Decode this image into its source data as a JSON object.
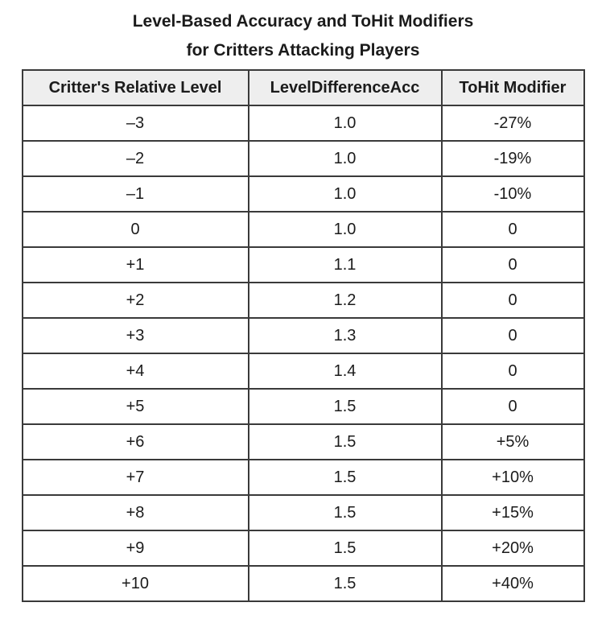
{
  "title": {
    "line1": "Level-Based Accuracy and ToHit Modifiers",
    "line2": "for Critters Attacking Players"
  },
  "colors": {
    "border": "#3a3a3a",
    "header_background": "#eeeeee",
    "text": "#1b1b1b",
    "row_background": "#ffffff",
    "page_background": "#ffffff"
  },
  "chart_data": {
    "type": "table",
    "title": "Level-Based Accuracy and ToHit Modifiers for Critters Attacking Players",
    "columns": [
      "Critter's Relative Level",
      "LevelDifferenceAcc",
      "ToHit Modifier"
    ],
    "rows": [
      [
        "–3",
        "1.0",
        "-27%"
      ],
      [
        "–2",
        "1.0",
        "-19%"
      ],
      [
        "–1",
        "1.0",
        "-10%"
      ],
      [
        "0",
        "1.0",
        "0"
      ],
      [
        "+1",
        "1.1",
        "0"
      ],
      [
        "+2",
        "1.2",
        "0"
      ],
      [
        "+3",
        "1.3",
        "0"
      ],
      [
        "+4",
        "1.4",
        "0"
      ],
      [
        "+5",
        "1.5",
        "0"
      ],
      [
        "+6",
        "1.5",
        "+5%"
      ],
      [
        "+7",
        "1.5",
        "+10%"
      ],
      [
        "+8",
        "1.5",
        "+15%"
      ],
      [
        "+9",
        "1.5",
        "+20%"
      ],
      [
        "+10",
        "1.5",
        "+40%"
      ]
    ],
    "layout_hints": {
      "all_cells_centered": true,
      "header_bold": true,
      "grid": true
    }
  }
}
